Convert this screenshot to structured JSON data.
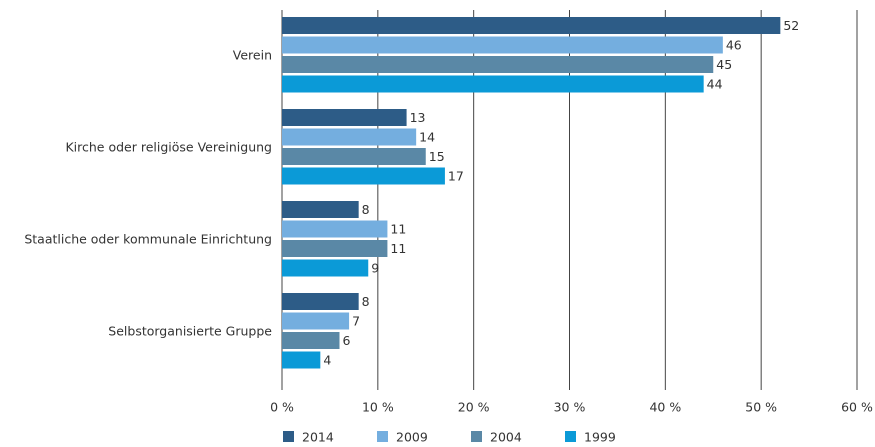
{
  "chart_data": {
    "type": "bar",
    "orientation": "horizontal",
    "categories": [
      "Verein",
      "Kirche oder religiöse Vereinigung",
      "Staatliche oder kommunale Einrichtung",
      "Selbstorganisierte Gruppe"
    ],
    "series": [
      {
        "name": "2014",
        "color": "#2d5c87",
        "values": [
          52,
          13,
          8,
          8
        ]
      },
      {
        "name": "2009",
        "color": "#74aedf",
        "values": [
          46,
          14,
          11,
          7
        ]
      },
      {
        "name": "2004",
        "color": "#5a88a6",
        "values": [
          45,
          15,
          11,
          6
        ]
      },
      {
        "name": "1999",
        "color": "#0b9ad7",
        "values": [
          44,
          17,
          9,
          4
        ]
      }
    ],
    "xlim": [
      0,
      60
    ],
    "xticks": [
      {
        "value": 0,
        "label": "0 %"
      },
      {
        "value": 10,
        "label": "10 %"
      },
      {
        "value": 20,
        "label": "20 %"
      },
      {
        "value": 30,
        "label": "30 %"
      },
      {
        "value": 40,
        "label": "40 %"
      },
      {
        "value": 50,
        "label": "50 %"
      },
      {
        "value": 60,
        "label": "60 %"
      }
    ],
    "grid": true,
    "legend": "bottom"
  }
}
